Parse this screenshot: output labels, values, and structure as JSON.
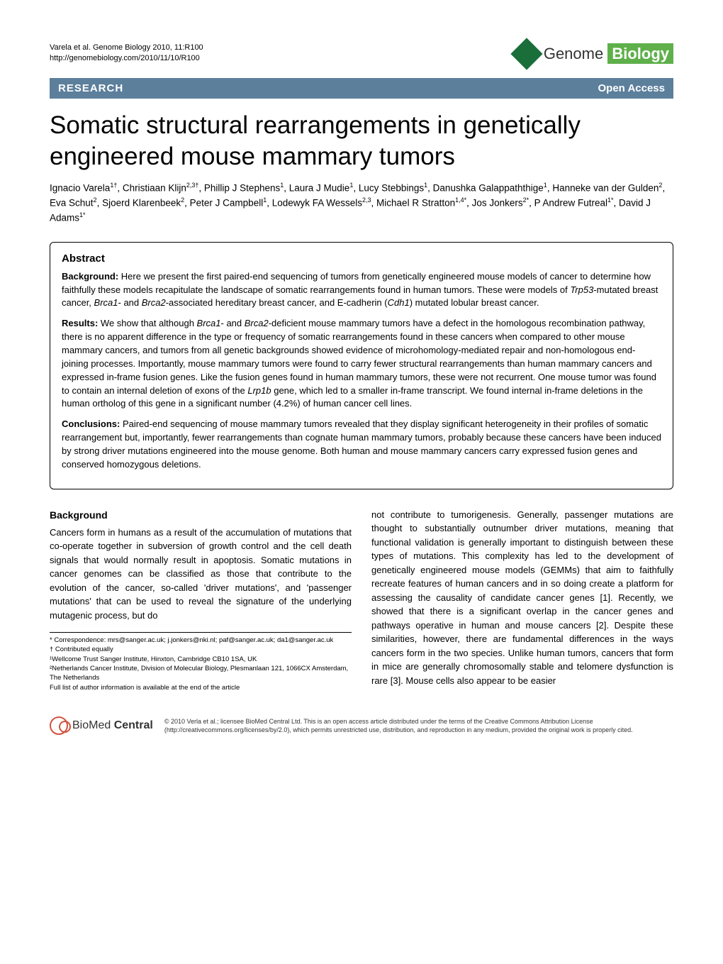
{
  "citation": {
    "line1": "Varela et al. Genome Biology 2010, 11:R100",
    "line2": "http://genomebiology.com/2010/11/10/R100"
  },
  "journal": {
    "name_light": "Genome ",
    "name_bold": "Biology"
  },
  "bar": {
    "research": "RESEARCH",
    "open_access": "Open Access"
  },
  "title": "Somatic structural rearrangements in genetically engineered mouse mammary tumors",
  "authors_html": "Ignacio Varela<sup>1†</sup>, Christiaan Klijn<sup>2,3†</sup>, Phillip J Stephens<sup>1</sup>, Laura J Mudie<sup>1</sup>, Lucy Stebbings<sup>1</sup>, Danushka Galappaththige<sup>1</sup>, Hanneke van der Gulden<sup>2</sup>, Eva Schut<sup>2</sup>, Sjoerd Klarenbeek<sup>2</sup>, Peter J Campbell<sup>1</sup>, Lodewyk FA Wessels<sup>2,3</sup>, Michael R Stratton<sup>1,4*</sup>, Jos Jonkers<sup>2*</sup>, P Andrew Futreal<sup>1*</sup>, David J Adams<sup>1*</sup>",
  "abstract": {
    "heading": "Abstract",
    "background_label": "Background: ",
    "background_text": "Here we present the first paired-end sequencing of tumors from genetically engineered mouse models of cancer to determine how faithfully these models recapitulate the landscape of somatic rearrangements found in human tumors. These were models of Trp53-mutated breast cancer, Brca1- and Brca2-associated hereditary breast cancer, and E-cadherin (Cdh1) mutated lobular breast cancer.",
    "results_label": "Results: ",
    "results_text": "We show that although Brca1- and Brca2-deficient mouse mammary tumors have a defect in the homologous recombination pathway, there is no apparent difference in the type or frequency of somatic rearrangements found in these cancers when compared to other mouse mammary cancers, and tumors from all genetic backgrounds showed evidence of microhomology-mediated repair and non-homologous end-joining processes. Importantly, mouse mammary tumors were found to carry fewer structural rearrangements than human mammary cancers and expressed in-frame fusion genes. Like the fusion genes found in human mammary tumors, these were not recurrent. One mouse tumor was found to contain an internal deletion of exons of the Lrp1b gene, which led to a smaller in-frame transcript. We found internal in-frame deletions in the human ortholog of this gene in a significant number (4.2%) of human cancer cell lines.",
    "conclusions_label": "Conclusions: ",
    "conclusions_text": "Paired-end sequencing of mouse mammary tumors revealed that they display significant heterogeneity in their profiles of somatic rearrangement but, importantly, fewer rearrangements than cognate human mammary tumors, probably because these cancers have been induced by strong driver mutations engineered into the mouse genome. Both human and mouse mammary cancers carry expressed fusion genes and conserved homozygous deletions."
  },
  "body": {
    "background_heading": "Background",
    "col1_text": "Cancers form in humans as a result of the accumulation of mutations that co-operate together in subversion of growth control and the cell death signals that would normally result in apoptosis. Somatic mutations in cancer genomes can be classified as those that contribute to the evolution of the cancer, so-called 'driver mutations', and 'passenger mutations' that can be used to reveal the signature of the underlying mutagenic process, but do",
    "col2_text": "not contribute to tumorigenesis. Generally, passenger mutations are thought to substantially outnumber driver mutations, meaning that functional validation is generally important to distinguish between these types of mutations. This complexity has led to the development of genetically engineered mouse models (GEMMs) that aim to faithfully recreate features of human cancers and in so doing create a platform for assessing the causality of candidate cancer genes [1]. Recently, we showed that there is a significant overlap in the cancer genes and pathways operative in human and mouse cancers [2]. Despite these similarities, however, there are fundamental differences in the ways cancers form in the two species. Unlike human tumors, cancers that form in mice are generally chromosomally stable and telomere dysfunction is rare [3]. Mouse cells also appear to be easier"
  },
  "footnotes": {
    "correspondence": "* Correspondence: mrs@sanger.ac.uk; j.jonkers@nki.nl; paf@sanger.ac.uk; da1@sanger.ac.uk",
    "contributed": "† Contributed equally",
    "affil1": "¹Wellcome Trust Sanger Institute, Hinxton, Cambridge CB10 1SA, UK",
    "affil2": "²Netherlands Cancer Institute, Division of Molecular Biology, Plesmanlaan 121, 1066CX Amsterdam, The Netherlands",
    "fullinfo": "Full list of author information is available at the end of the article"
  },
  "footer": {
    "bmc_light": "BioMed ",
    "bmc_bold": "Central",
    "license": "© 2010 Verla et al.; licensee BioMed Central Ltd. This is an open access article distributed under the terms of the Creative Commons Attribution License (http://creativecommons.org/licenses/by/2.0), which permits unrestricted use, distribution, and reproduction in any medium, provided the original work is properly cited."
  }
}
